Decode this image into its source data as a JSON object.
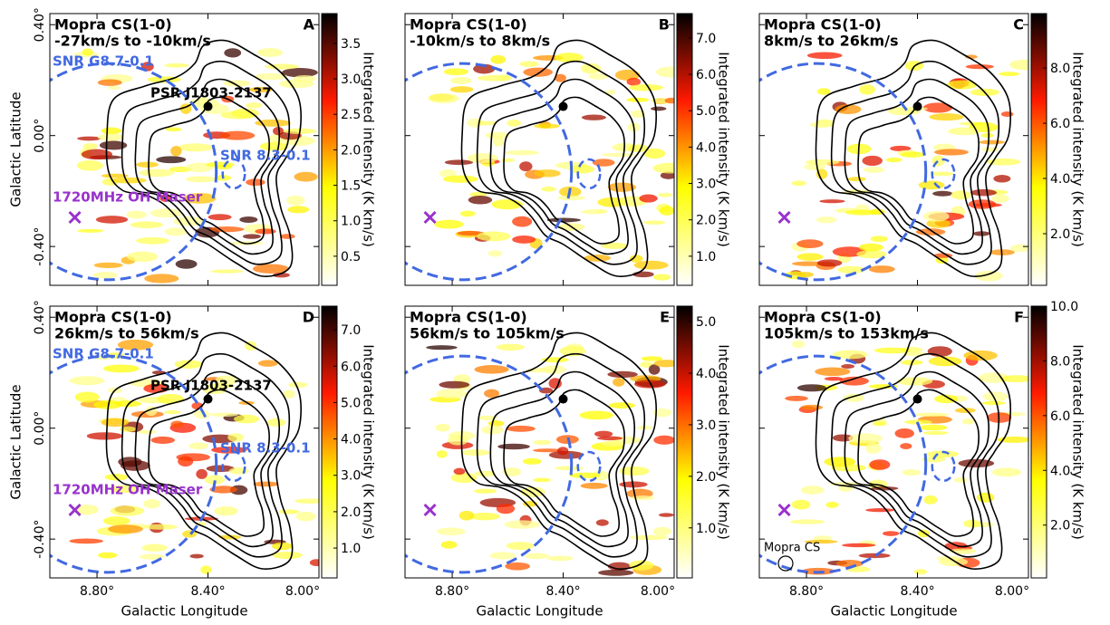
{
  "chart_data": [
    {
      "type": "map",
      "title": "Mopra CS(1-0)",
      "subtitle": "-27km/s to -10km/s",
      "panel": "A",
      "ylabel": "Galactic Latitude",
      "xlim": [
        8.97,
        8.0
      ],
      "ylim": [
        -0.54,
        0.44
      ],
      "xticks": [
        {
          "value": 8.8,
          "label": "8.80°"
        },
        {
          "value": 8.4,
          "label": "8.40°"
        },
        {
          "value": 8.0,
          "label": "8.00°"
        }
      ],
      "yticks": [
        {
          "value": -0.4,
          "label": "-0.40°"
        },
        {
          "value": 0.0,
          "label": "0.00°"
        },
        {
          "value": 0.4,
          "label": "0.40°"
        }
      ],
      "colorbar": {
        "label": "Integrated intensity (K km/s)",
        "lim": [
          0.09,
          3.92
        ],
        "ticks": [
          0.5,
          {
            "value": 1.0,
            "label": "1.0"
          },
          1.5,
          {
            "value": 2.0,
            "label": "2.0"
          },
          2.5,
          {
            "value": 3.0,
            "label": "3.0"
          },
          3.5
        ]
      },
      "annotations": [
        "SNR G8.7-0.1",
        "PSR J1803-2137",
        "SNR 8.3-0.1",
        "1720MHz OH Maser"
      ],
      "pulsar": {
        "l": 8.4,
        "b": 0.105
      },
      "maser": {
        "l": 8.88,
        "b": -0.295
      },
      "snr_large": {
        "l": 8.76,
        "b": -0.13,
        "r": 0.39
      },
      "snr_small": {
        "l": 8.307,
        "b": -0.138,
        "r": 0.04
      }
    },
    {
      "type": "map",
      "title": "Mopra CS(1-0)",
      "subtitle": "-10km/s to 8km/s",
      "panel": "B",
      "xlim": [
        8.97,
        8.0
      ],
      "ylim": [
        -0.54,
        0.44
      ],
      "xticks": [
        {
          "value": 8.8,
          "label": "8.80°"
        },
        {
          "value": 8.4,
          "label": "8.40°"
        },
        {
          "value": 8.0,
          "label": "8.00°"
        }
      ],
      "yticks": [
        {
          "value": -0.4,
          "label": "-0.40°"
        },
        {
          "value": 0.0,
          "label": "0.00°"
        },
        {
          "value": 0.4,
          "label": "0.40°"
        }
      ],
      "colorbar": {
        "label": "Integrated intensity (K km/s)",
        "lim": [
          0.2,
          7.67
        ],
        "ticks": [
          {
            "value": 1.0,
            "label": "1.0"
          },
          {
            "value": 2.0,
            "label": "2.0"
          },
          {
            "value": 3.0,
            "label": "3.0"
          },
          {
            "value": 4.0,
            "label": "4.0"
          },
          {
            "value": 5.0,
            "label": "5.0"
          },
          {
            "value": 6.0,
            "label": "6.0"
          },
          {
            "value": 7.0,
            "label": "7.0"
          }
        ]
      },
      "pulsar": {
        "l": 8.4,
        "b": 0.105
      },
      "maser": {
        "l": 8.88,
        "b": -0.295
      },
      "snr_large": {
        "l": 8.76,
        "b": -0.13,
        "r": 0.39
      },
      "snr_small": {
        "l": 8.307,
        "b": -0.138,
        "r": 0.04
      }
    },
    {
      "type": "map",
      "title": "Mopra CS(1-0)",
      "subtitle": "8km/s to 26km/s",
      "panel": "C",
      "xlim": [
        8.97,
        8.0
      ],
      "ylim": [
        -0.54,
        0.44
      ],
      "xticks": [
        {
          "value": 8.8,
          "label": "8.80°"
        },
        {
          "value": 8.4,
          "label": "8.40°"
        },
        {
          "value": 8.0,
          "label": "8.00°"
        }
      ],
      "yticks": [
        {
          "value": -0.4,
          "label": "-0.40°"
        },
        {
          "value": 0.0,
          "label": "0.00°"
        },
        {
          "value": 0.4,
          "label": "0.40°"
        }
      ],
      "colorbar": {
        "label": "Integrated intensity (K km/s)",
        "lim": [
          0.13,
          9.97
        ],
        "ticks": [
          {
            "value": 2.0,
            "label": "2.0"
          },
          {
            "value": 4.0,
            "label": "4.0"
          },
          {
            "value": 6.0,
            "label": "6.0"
          },
          {
            "value": 8.0,
            "label": "8.0"
          }
        ]
      },
      "pulsar": {
        "l": 8.4,
        "b": 0.105
      },
      "maser": {
        "l": 8.88,
        "b": -0.295
      },
      "snr_large": {
        "l": 8.76,
        "b": -0.13,
        "r": 0.39
      },
      "snr_small": {
        "l": 8.307,
        "b": -0.138,
        "r": 0.04
      }
    },
    {
      "type": "map",
      "title": "Mopra CS(1-0)",
      "subtitle": "26km/s to 56km/s",
      "panel": "D",
      "xlabel": "Galactic Longitude",
      "ylabel": "Galactic Latitude",
      "xlim": [
        8.97,
        8.0
      ],
      "ylim": [
        -0.54,
        0.44
      ],
      "xticks": [
        {
          "value": 8.8,
          "label": "8.80°"
        },
        {
          "value": 8.4,
          "label": "8.40°"
        },
        {
          "value": 8.0,
          "label": "8.00°"
        }
      ],
      "yticks": [
        {
          "value": -0.4,
          "label": "-0.40°"
        },
        {
          "value": 0.0,
          "label": "0.00°"
        },
        {
          "value": 0.4,
          "label": "0.40°"
        }
      ],
      "colorbar": {
        "label": "Integrated intensity (K km/s)",
        "lim": [
          0.18,
          7.65
        ],
        "ticks": [
          {
            "value": 1.0,
            "label": "1.0"
          },
          {
            "value": 2.0,
            "label": "2.0"
          },
          {
            "value": 3.0,
            "label": "3.0"
          },
          {
            "value": 4.0,
            "label": "4.0"
          },
          {
            "value": 5.0,
            "label": "5.0"
          },
          {
            "value": 6.0,
            "label": "6.0"
          },
          {
            "value": 7.0,
            "label": "7.0"
          }
        ]
      },
      "annotations": [
        "SNR G8.7-0.1",
        "PSR J1803-2137",
        "SNR 8.3-0.1",
        "1720MHz OH Maser"
      ],
      "pulsar": {
        "l": 8.4,
        "b": 0.105
      },
      "maser": {
        "l": 8.88,
        "b": -0.295
      },
      "snr_large": {
        "l": 8.76,
        "b": -0.13,
        "r": 0.39
      },
      "snr_small": {
        "l": 8.307,
        "b": -0.138,
        "r": 0.04
      }
    },
    {
      "type": "map",
      "title": "Mopra CS(1-0)",
      "subtitle": "56km/s to 105km/s",
      "panel": "E",
      "xlabel": "Galactic Longitude",
      "xlim": [
        8.97,
        8.0
      ],
      "ylim": [
        -0.54,
        0.44
      ],
      "xticks": [
        {
          "value": 8.8,
          "label": "8.80°"
        },
        {
          "value": 8.4,
          "label": "8.40°"
        },
        {
          "value": 8.0,
          "label": "8.00°"
        }
      ],
      "yticks": [
        {
          "value": -0.4,
          "label": "-0.40°"
        },
        {
          "value": 0.0,
          "label": "0.00°"
        },
        {
          "value": 0.4,
          "label": "0.40°"
        }
      ],
      "colorbar": {
        "label": "Integrated intensity (K km/s)",
        "lim": [
          0.03,
          5.3
        ],
        "ticks": [
          {
            "value": 1.0,
            "label": "1.0"
          },
          {
            "value": 2.0,
            "label": "2.0"
          },
          {
            "value": 3.0,
            "label": "3.0"
          },
          {
            "value": 4.0,
            "label": "4.0"
          },
          {
            "value": 5.0,
            "label": "5.0"
          }
        ]
      },
      "pulsar": {
        "l": 8.4,
        "b": 0.105
      },
      "maser": {
        "l": 8.88,
        "b": -0.295
      },
      "snr_large": {
        "l": 8.76,
        "b": -0.13,
        "r": 0.39
      },
      "snr_small": {
        "l": 8.307,
        "b": -0.138,
        "r": 0.04
      }
    },
    {
      "type": "map",
      "title": "Mopra CS(1-0)",
      "subtitle": "105km/s to 153km/s",
      "panel": "F",
      "xlabel": "Galactic Longitude",
      "xlim": [
        8.97,
        8.0
      ],
      "ylim": [
        -0.54,
        0.44
      ],
      "xticks": [
        {
          "value": 8.8,
          "label": "8.80°"
        },
        {
          "value": 8.4,
          "label": "8.40°"
        },
        {
          "value": 8.0,
          "label": "8.00°"
        }
      ],
      "yticks": [
        {
          "value": -0.4,
          "label": "-0.40°"
        },
        {
          "value": 0.0,
          "label": "0.00°"
        },
        {
          "value": 0.4,
          "label": "0.40°"
        }
      ],
      "colorbar": {
        "label": "Integrated intensity (K km/s)",
        "lim": [
          0.07,
          10.0
        ],
        "ticks": [
          {
            "value": 2.0,
            "label": "2.0"
          },
          {
            "value": 4.0,
            "label": "4.0"
          },
          {
            "value": 6.0,
            "label": "6.0"
          },
          {
            "value": 8.0,
            "label": "8.0"
          },
          {
            "value": 10.0,
            "label": "10.0"
          }
        ]
      },
      "beam_label": "Mopra CS",
      "pulsar": {
        "l": 8.4,
        "b": 0.105
      },
      "maser": {
        "l": 8.88,
        "b": -0.295
      },
      "snr_large": {
        "l": 8.76,
        "b": -0.13,
        "r": 0.39
      },
      "snr_small": {
        "l": 8.307,
        "b": -0.138,
        "r": 0.04
      }
    }
  ]
}
